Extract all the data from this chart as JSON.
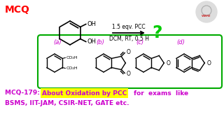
{
  "bg_color": "#ffffff",
  "mcq_title": "MCQ",
  "mcq_title_color": "#ff0000",
  "mcq_title_fontsize": 10,
  "reaction_conditions_top": "1.5 eqv. PCC",
  "reaction_conditions_bottom": "DCM, RT, 0.5 H",
  "question_mark": "?",
  "question_mark_color": "#00cc00",
  "box_color": "#00aa00",
  "label_color": "#cc00cc",
  "bottom_text_color": "#cc00cc",
  "highlight_color": "#ffff00",
  "bottom_line2": "BSMS, IIT-JAM, CSIR-NET, GATE etc.",
  "options": [
    "(a)",
    "(b)",
    "(c)",
    "(d)"
  ],
  "option_color": "#cc00cc"
}
